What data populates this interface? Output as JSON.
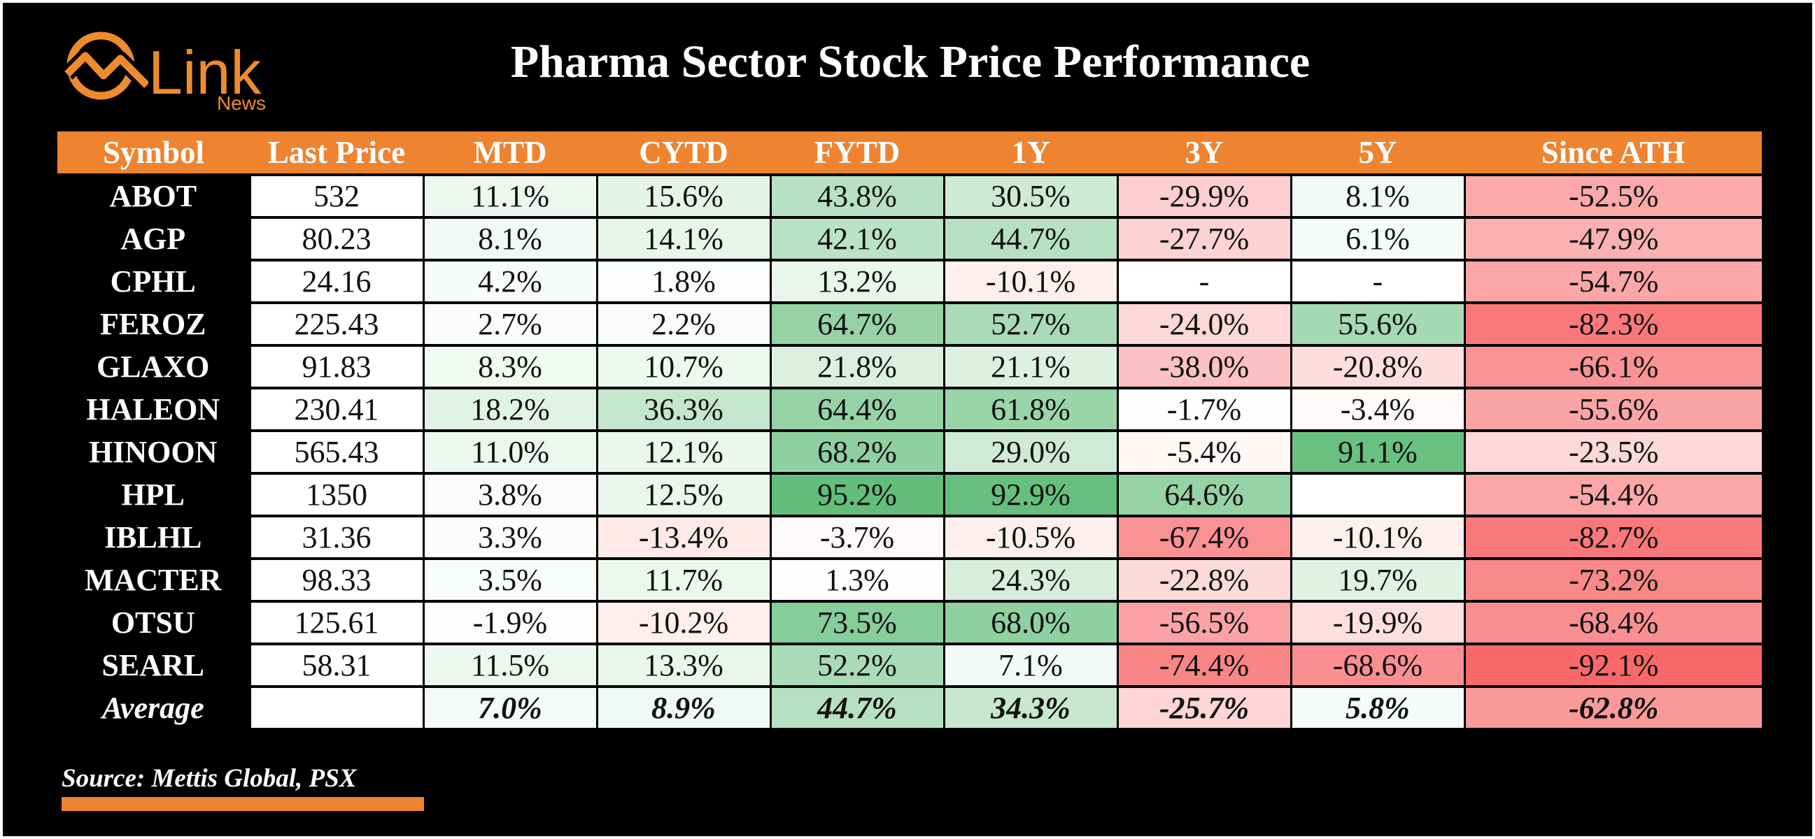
{
  "brand": {
    "name": "Link",
    "sub": "News"
  },
  "title": "Pharma Sector Stock Price Performance",
  "source": "Source: Mettis Global, PSX",
  "colors": {
    "header": "#ee8330",
    "positive": "#63be7b",
    "negative": "#f8696b",
    "neutral": "#ffffff"
  },
  "chart_data": {
    "type": "table",
    "title": "Pharma Sector Stock Price Performance",
    "columns": [
      "Symbol",
      "Last Price",
      "MTD",
      "CYTD",
      "FYTD",
      "1Y",
      "3Y",
      "5Y",
      "Since ATH"
    ],
    "rows": [
      [
        "ABOT",
        "532",
        "11.1%",
        "15.6%",
        "43.8%",
        "30.5%",
        "-29.9%",
        "8.1%",
        "-52.5%"
      ],
      [
        "AGP",
        "80.23",
        "8.1%",
        "14.1%",
        "42.1%",
        "44.7%",
        "-27.7%",
        "6.1%",
        "-47.9%"
      ],
      [
        "CPHL",
        "24.16",
        "4.2%",
        "1.8%",
        "13.2%",
        "-10.1%",
        "-",
        "-",
        "-54.7%"
      ],
      [
        "FEROZ",
        "225.43",
        "2.7%",
        "2.2%",
        "64.7%",
        "52.7%",
        "-24.0%",
        "55.6%",
        "-82.3%"
      ],
      [
        "GLAXO",
        "91.83",
        "8.3%",
        "10.7%",
        "21.8%",
        "21.1%",
        "-38.0%",
        "-20.8%",
        "-66.1%"
      ],
      [
        "HALEON",
        "230.41",
        "18.2%",
        "36.3%",
        "64.4%",
        "61.8%",
        "-1.7%",
        "-3.4%",
        "-55.6%"
      ],
      [
        "HINOON",
        "565.43",
        "11.0%",
        "12.1%",
        "68.2%",
        "29.0%",
        "-5.4%",
        "91.1%",
        "-23.5%"
      ],
      [
        "HPL",
        "1350",
        "3.8%",
        "12.5%",
        "95.2%",
        "92.9%",
        "64.6%",
        "",
        "-54.4%"
      ],
      [
        "IBLHL",
        "31.36",
        "3.3%",
        "-13.4%",
        "-3.7%",
        "-10.5%",
        "-67.4%",
        "-10.1%",
        "-82.7%"
      ],
      [
        "MACTER",
        "98.33",
        "3.5%",
        "11.7%",
        "1.3%",
        "24.3%",
        "-22.8%",
        "19.7%",
        "-73.2%"
      ],
      [
        "OTSU",
        "125.61",
        "-1.9%",
        "-10.2%",
        "73.5%",
        "68.0%",
        "-56.5%",
        "-19.9%",
        "-68.4%"
      ],
      [
        "SEARL",
        "58.31",
        "11.5%",
        "13.3%",
        "52.2%",
        "7.1%",
        "-74.4%",
        "-68.6%",
        "-92.1%"
      ]
    ],
    "average": [
      "Average",
      "",
      "7.0%",
      "8.9%",
      "44.7%",
      "34.3%",
      "-25.7%",
      "5.8%",
      "-62.8%"
    ]
  }
}
